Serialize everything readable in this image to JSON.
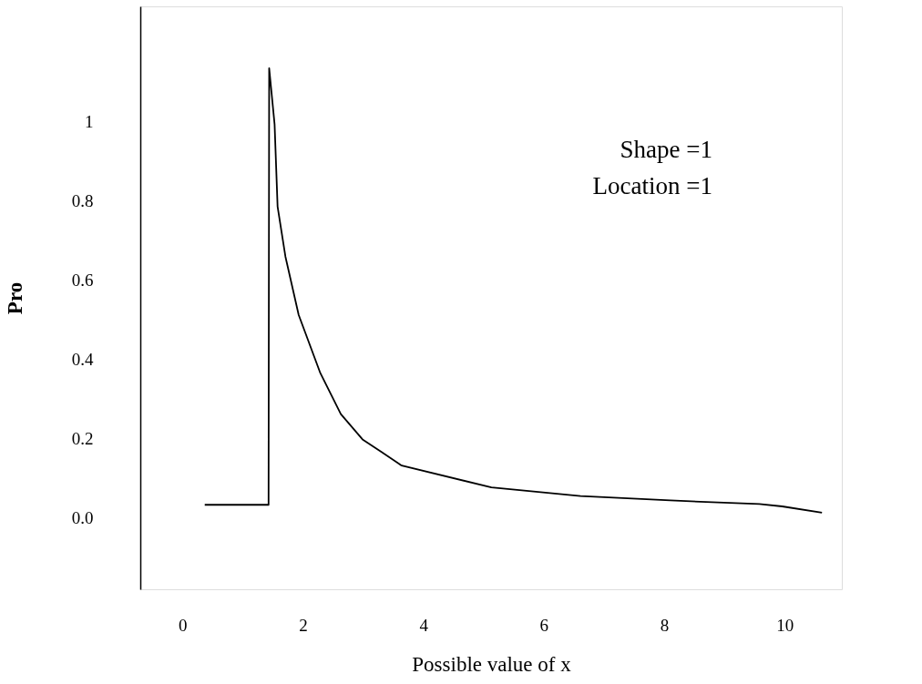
{
  "chart_data": {
    "type": "line",
    "xlabel": "Possible value of x",
    "ylabel": "Pro",
    "annotations": [
      "Shape =1",
      "Location =1"
    ],
    "x": [
      0.37,
      1.43,
      1.44,
      1.53,
      1.58,
      1.71,
      1.93,
      2.29,
      2.63,
      2.99,
      3.3,
      3.64,
      5.13,
      6.61,
      8.1,
      9.58,
      9.96,
      10.62
    ],
    "series": [
      {
        "color": "#000000",
        "values": [
          0.033,
          0.033,
          1.134,
          0.993,
          0.785,
          0.659,
          0.512,
          0.365,
          0.262,
          0.198,
          0.167,
          0.132,
          0.077,
          0.055,
          0.044,
          0.035,
          0.029,
          0.013
        ]
      }
    ],
    "xlim": [
      -0.7,
      10.95
    ],
    "ylim": [
      -0.18,
      1.29
    ],
    "xticks": [
      0,
      2,
      4,
      6,
      8,
      10
    ],
    "yticks": [
      {
        "value": 0,
        "label": "0.0"
      },
      0.2,
      0.4,
      0.6,
      0.8,
      1
    ],
    "grid": false,
    "marker": "none",
    "line_style": "solid"
  }
}
